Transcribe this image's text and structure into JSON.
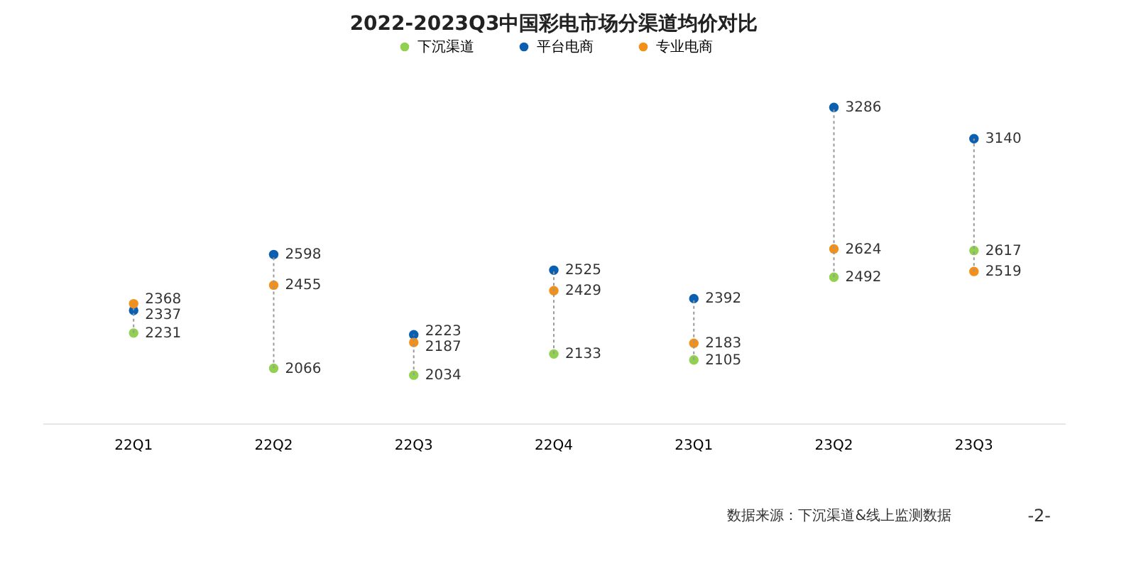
{
  "chart_data": {
    "type": "scatter",
    "title": "2022-2023Q3中国彩电市场分渠道均价对比",
    "categories": [
      "22Q1",
      "22Q2",
      "22Q3",
      "22Q4",
      "23Q1",
      "23Q2",
      "23Q3"
    ],
    "series": [
      {
        "name": "下沉渠道",
        "color": "#92d050",
        "values": [
          2231,
          2066,
          2034,
          2133,
          2105,
          2492,
          2617
        ]
      },
      {
        "name": "平台电商",
        "color": "#0b5fb0",
        "values": [
          2337,
          2598,
          2223,
          2525,
          2392,
          3286,
          3140
        ]
      },
      {
        "name": "专业电商",
        "color": "#f39019",
        "values": [
          2368,
          2455,
          2187,
          2429,
          2183,
          2624,
          2519
        ]
      }
    ],
    "marker": "circle",
    "data_labels": true,
    "legend": "top",
    "grid": false,
    "tick_labels": "x",
    "annotations": [
      "数据来源：下沉渠道&线上监测数据",
      "-2-"
    ]
  }
}
